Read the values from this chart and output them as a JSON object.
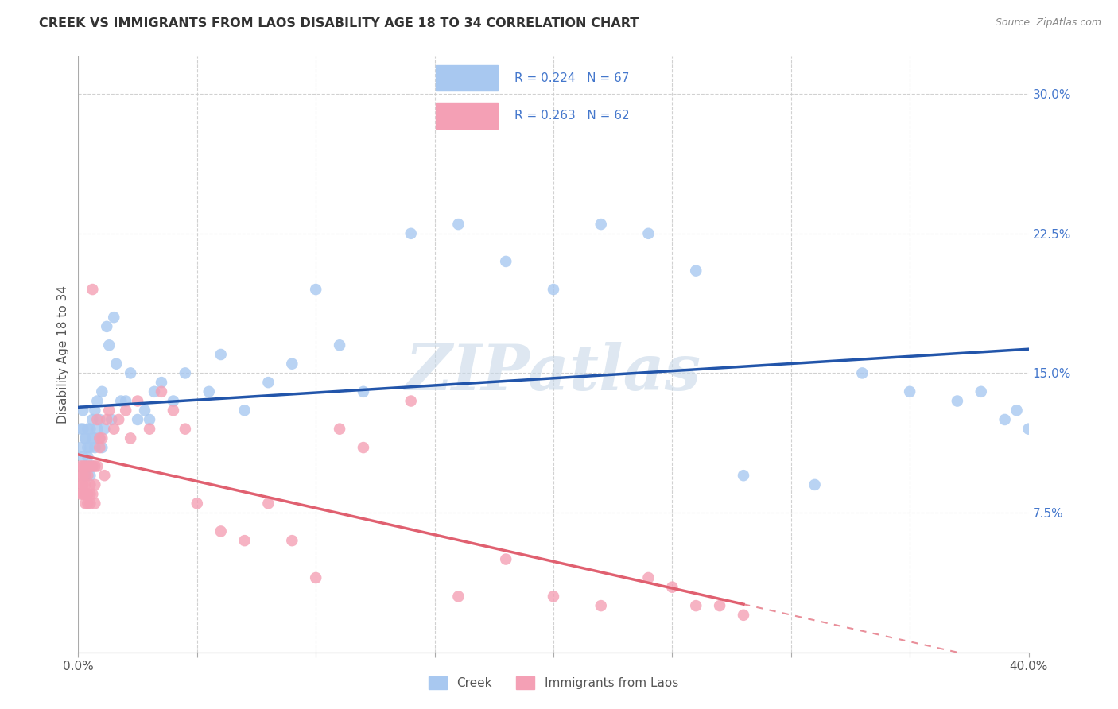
{
  "title": "CREEK VS IMMIGRANTS FROM LAOS DISABILITY AGE 18 TO 34 CORRELATION CHART",
  "source": "Source: ZipAtlas.com",
  "ylabel": "Disability Age 18 to 34",
  "xlim": [
    0.0,
    0.4
  ],
  "ylim": [
    0.0,
    0.32
  ],
  "x_ticks": [
    0.0,
    0.05,
    0.1,
    0.15,
    0.2,
    0.25,
    0.3,
    0.35,
    0.4
  ],
  "y_ticks": [
    0.0,
    0.075,
    0.15,
    0.225,
    0.3
  ],
  "y_tick_labels": [
    "",
    "7.5%",
    "15.0%",
    "22.5%",
    "30.0%"
  ],
  "grid_color": "#cccccc",
  "background_color": "#ffffff",
  "legend_label1": "Creek",
  "legend_label2": "Immigrants from Laos",
  "color_creek": "#a8c8f0",
  "color_laos": "#f4a0b5",
  "line_color_creek": "#2255aa",
  "line_color_laos": "#e06070",
  "watermark": "ZIPatlas",
  "legend_text_color": "#4477cc",
  "creek_x": [
    0.001,
    0.001,
    0.002,
    0.002,
    0.002,
    0.003,
    0.003,
    0.003,
    0.003,
    0.004,
    0.004,
    0.004,
    0.005,
    0.005,
    0.005,
    0.006,
    0.006,
    0.006,
    0.007,
    0.007,
    0.007,
    0.008,
    0.008,
    0.009,
    0.009,
    0.01,
    0.01,
    0.011,
    0.012,
    0.013,
    0.014,
    0.015,
    0.016,
    0.018,
    0.02,
    0.022,
    0.025,
    0.028,
    0.03,
    0.032,
    0.035,
    0.04,
    0.045,
    0.055,
    0.06,
    0.07,
    0.08,
    0.09,
    0.1,
    0.11,
    0.12,
    0.14,
    0.16,
    0.18,
    0.2,
    0.22,
    0.24,
    0.26,
    0.28,
    0.31,
    0.33,
    0.35,
    0.37,
    0.38,
    0.39,
    0.395,
    0.4
  ],
  "creek_y": [
    0.12,
    0.11,
    0.105,
    0.12,
    0.13,
    0.115,
    0.1,
    0.095,
    0.115,
    0.11,
    0.12,
    0.105,
    0.11,
    0.12,
    0.095,
    0.115,
    0.1,
    0.125,
    0.11,
    0.115,
    0.13,
    0.135,
    0.12,
    0.125,
    0.115,
    0.11,
    0.14,
    0.12,
    0.175,
    0.165,
    0.125,
    0.18,
    0.155,
    0.135,
    0.135,
    0.15,
    0.125,
    0.13,
    0.125,
    0.14,
    0.145,
    0.135,
    0.15,
    0.14,
    0.16,
    0.13,
    0.145,
    0.155,
    0.195,
    0.165,
    0.14,
    0.225,
    0.23,
    0.21,
    0.195,
    0.23,
    0.225,
    0.205,
    0.095,
    0.09,
    0.15,
    0.14,
    0.135,
    0.14,
    0.125,
    0.13,
    0.12
  ],
  "laos_x": [
    0.001,
    0.001,
    0.001,
    0.001,
    0.002,
    0.002,
    0.002,
    0.002,
    0.003,
    0.003,
    0.003,
    0.003,
    0.003,
    0.004,
    0.004,
    0.004,
    0.004,
    0.005,
    0.005,
    0.005,
    0.005,
    0.006,
    0.006,
    0.006,
    0.007,
    0.007,
    0.007,
    0.008,
    0.008,
    0.009,
    0.009,
    0.01,
    0.011,
    0.012,
    0.013,
    0.015,
    0.017,
    0.02,
    0.022,
    0.025,
    0.03,
    0.035,
    0.04,
    0.045,
    0.05,
    0.06,
    0.07,
    0.08,
    0.09,
    0.1,
    0.11,
    0.12,
    0.14,
    0.16,
    0.18,
    0.2,
    0.22,
    0.24,
    0.25,
    0.26,
    0.27,
    0.28
  ],
  "laos_y": [
    0.1,
    0.095,
    0.09,
    0.085,
    0.1,
    0.095,
    0.085,
    0.09,
    0.1,
    0.095,
    0.09,
    0.085,
    0.08,
    0.1,
    0.095,
    0.085,
    0.08,
    0.1,
    0.09,
    0.085,
    0.08,
    0.195,
    0.1,
    0.085,
    0.1,
    0.09,
    0.08,
    0.125,
    0.1,
    0.115,
    0.11,
    0.115,
    0.095,
    0.125,
    0.13,
    0.12,
    0.125,
    0.13,
    0.115,
    0.135,
    0.12,
    0.14,
    0.13,
    0.12,
    0.08,
    0.065,
    0.06,
    0.08,
    0.06,
    0.04,
    0.12,
    0.11,
    0.135,
    0.03,
    0.05,
    0.03,
    0.025,
    0.04,
    0.035,
    0.025,
    0.025,
    0.02
  ]
}
